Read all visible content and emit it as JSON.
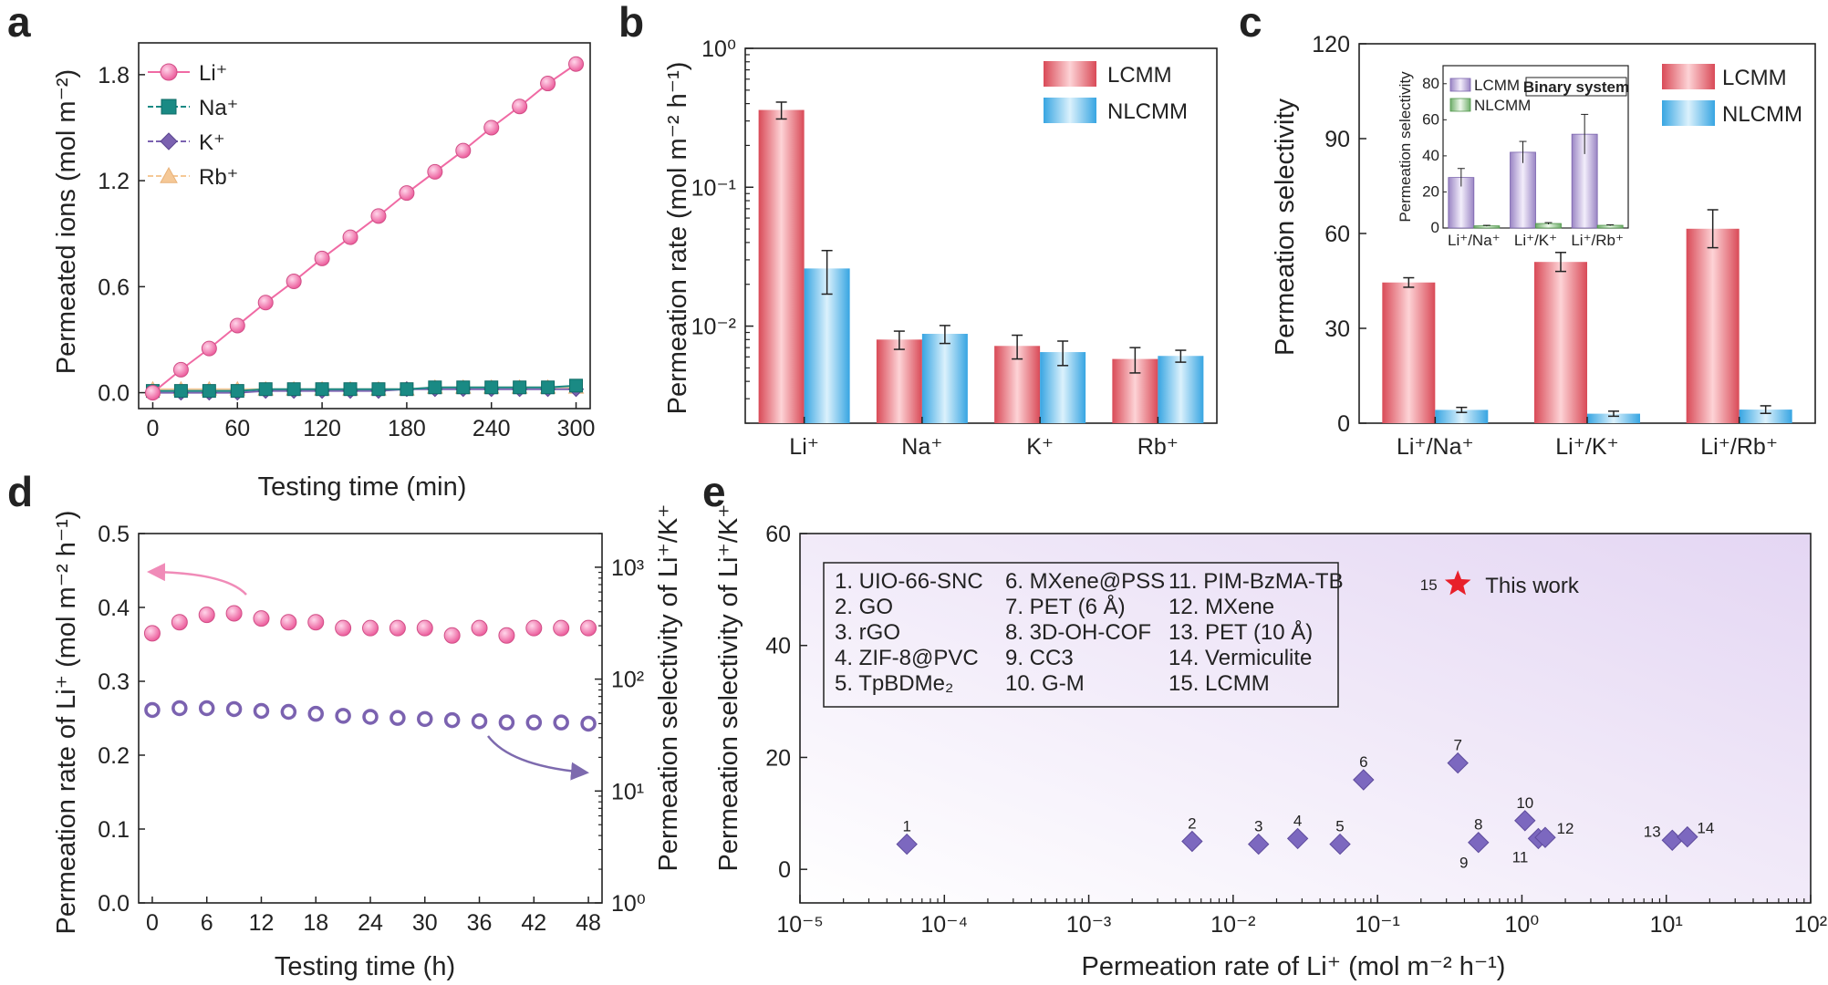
{
  "colors": {
    "li": "#f06aa4",
    "li_stroke": "#d14f87",
    "na": "#1a8a84",
    "k": "#7b62b0",
    "rb": "#f5c896",
    "lcmm": "#e35d68",
    "nlcmm": "#49b3e8",
    "marker_e": "#7c68bf",
    "star": "#e8202a"
  },
  "chart_data": [
    {
      "panel": "a",
      "type": "line",
      "xlabel": "Testing time (min)",
      "ylabel": "Permeated ions (mol m⁻²)",
      "xlim": [
        -10,
        310
      ],
      "ylim": [
        -0.09,
        1.98
      ],
      "xticks": [
        "0",
        "60",
        "120",
        "180",
        "240",
        "300"
      ],
      "yticks": [
        "0.0",
        "0.6",
        "1.2",
        "1.8"
      ],
      "x": [
        0,
        20,
        40,
        60,
        80,
        100,
        120,
        140,
        160,
        180,
        200,
        220,
        240,
        260,
        280,
        300
      ],
      "series": [
        {
          "name": "Li⁺",
          "marker": "circle",
          "values": [
            0.0,
            0.13,
            0.25,
            0.38,
            0.51,
            0.63,
            0.76,
            0.88,
            1.0,
            1.13,
            1.25,
            1.37,
            1.5,
            1.62,
            1.75,
            1.86
          ]
        },
        {
          "name": "Na⁺",
          "marker": "square",
          "values": [
            0.01,
            0.01,
            0.01,
            0.01,
            0.02,
            0.02,
            0.02,
            0.02,
            0.02,
            0.02,
            0.03,
            0.03,
            0.03,
            0.03,
            0.03,
            0.04
          ]
        },
        {
          "name": "K⁺",
          "marker": "diamond",
          "values": [
            0.0,
            0.0,
            0.0,
            0.0,
            0.01,
            0.01,
            0.01,
            0.01,
            0.01,
            0.02,
            0.02,
            0.02,
            0.02,
            0.02,
            0.02,
            0.02
          ]
        },
        {
          "name": "Rb⁺",
          "marker": "triangle",
          "values": [
            0.02,
            0.02,
            0.02,
            0.02,
            0.02,
            0.02,
            0.02,
            0.02,
            0.02,
            0.02,
            0.03,
            0.03,
            0.03,
            0.03,
            0.03,
            0.03
          ]
        }
      ]
    },
    {
      "panel": "b",
      "type": "bar",
      "scale": "log",
      "ylabel": "Permeation rate (mol m⁻² h⁻¹)",
      "ylim": [
        0.002,
        1.0
      ],
      "yticks": [
        "10⁻²",
        "10⁻¹",
        "10⁰"
      ],
      "categories": [
        "Li⁺",
        "Na⁺",
        "K⁺",
        "Rb⁺"
      ],
      "series": [
        {
          "name": "LCMM",
          "values": [
            0.36,
            0.008,
            0.0072,
            0.0058
          ],
          "errors": [
            0.05,
            0.0012,
            0.0014,
            0.0012
          ]
        },
        {
          "name": "NLCMM",
          "values": [
            0.026,
            0.0088,
            0.0065,
            0.0061
          ],
          "errors": [
            0.009,
            0.0013,
            0.0013,
            0.0006
          ]
        }
      ]
    },
    {
      "panel": "c",
      "type": "bar",
      "ylabel": "Permeation selectivity",
      "ylim": [
        0,
        120
      ],
      "yticks": [
        "0",
        "30",
        "60",
        "90",
        "120"
      ],
      "categories": [
        "Li⁺/Na⁺",
        "Li⁺/K⁺",
        "Li⁺/Rb⁺"
      ],
      "series": [
        {
          "name": "LCMM",
          "values": [
            44.5,
            51.0,
            61.5
          ],
          "errors": [
            1.5,
            3.0,
            6.0
          ]
        },
        {
          "name": "NLCMM",
          "values": [
            4.2,
            3.0,
            4.3
          ],
          "errors": [
            0.8,
            0.8,
            1.2
          ]
        }
      ],
      "inset": {
        "title": "Binary system",
        "ylabel": "Permeation selectivity",
        "ylim": [
          0,
          90
        ],
        "yticks": [
          "0",
          "20",
          "40",
          "60",
          "80"
        ],
        "categories": [
          "Li⁺/Na⁺",
          "Li⁺/K⁺",
          "Li⁺/Rb⁺"
        ],
        "series": [
          {
            "name": "LCMM",
            "values": [
              28,
              42,
              52
            ],
            "errors": [
              5,
              6,
              11
            ]
          },
          {
            "name": "NLCMM",
            "values": [
              1.2,
              2.5,
              1.5
            ],
            "errors": [
              0.3,
              0.5,
              0.3
            ]
          }
        ]
      }
    },
    {
      "panel": "d",
      "type": "scatter",
      "xlabel": "Testing time (h)",
      "ylabel": "Permeation rate of Li⁺ (mol m⁻² h⁻¹)",
      "ylabel_right": "Permeation selectivity of Li⁺/K⁺",
      "xlim": [
        -1.5,
        49.5
      ],
      "ylim": [
        0,
        0.5
      ],
      "ylim_right_log": [
        1,
        2000
      ],
      "xticks": [
        "0",
        "6",
        "12",
        "18",
        "24",
        "30",
        "36",
        "42",
        "48"
      ],
      "yticks": [
        "0.0",
        "0.1",
        "0.2",
        "0.3",
        "0.4",
        "0.5"
      ],
      "yticks_right": [
        "10⁰",
        "10¹",
        "10²",
        "10³"
      ],
      "x": [
        0,
        3,
        6,
        9,
        12,
        15,
        18,
        21,
        24,
        27,
        30,
        33,
        36,
        39,
        42,
        45,
        48
      ],
      "series": [
        {
          "axis": "left",
          "marker": "filled-circle",
          "values": [
            0.365,
            0.38,
            0.39,
            0.392,
            0.385,
            0.38,
            0.38,
            0.372,
            0.372,
            0.372,
            0.372,
            0.362,
            0.372,
            0.362,
            0.372,
            0.372,
            0.372
          ]
        },
        {
          "axis": "right",
          "marker": "open-circle",
          "values": [
            53,
            55,
            55,
            54,
            52,
            51,
            49,
            47,
            46,
            45,
            44,
            43,
            42,
            41,
            41,
            41,
            40
          ]
        }
      ]
    },
    {
      "panel": "e",
      "type": "scatter",
      "scale_x": "log",
      "xlabel": "Permeation rate of Li⁺ (mol m⁻² h⁻¹)",
      "ylabel": "Permeation selectivity of Li⁺/K⁺",
      "xlim_log": [
        -5,
        2
      ],
      "ylim": [
        -6,
        60
      ],
      "xticks": [
        "10⁻⁵",
        "10⁻⁴",
        "10⁻³",
        "10⁻²",
        "10⁻¹",
        "10⁰",
        "10¹",
        "10²"
      ],
      "yticks": [
        "0",
        "20",
        "40",
        "60"
      ],
      "points": [
        {
          "label": "1",
          "x": 5.5e-05,
          "y": 4.5
        },
        {
          "label": "2",
          "x": 0.0052,
          "y": 5.0
        },
        {
          "label": "3",
          "x": 0.015,
          "y": 4.5
        },
        {
          "label": "4",
          "x": 0.028,
          "y": 5.5
        },
        {
          "label": "5",
          "x": 0.055,
          "y": 4.5
        },
        {
          "label": "6",
          "x": 0.08,
          "y": 16.0
        },
        {
          "label": "7",
          "x": 0.36,
          "y": 19.0
        },
        {
          "label": "8",
          "x": 0.5,
          "y": 4.8
        },
        {
          "label": "9",
          "x": 0.5,
          "y": 4.8
        },
        {
          "label": "10",
          "x": 1.05,
          "y": 8.7
        },
        {
          "label": "11",
          "x": 1.3,
          "y": 5.5
        },
        {
          "label": "12",
          "x": 1.45,
          "y": 5.7
        },
        {
          "label": "13",
          "x": 11.0,
          "y": 5.2
        },
        {
          "label": "14",
          "x": 14.0,
          "y": 5.8
        }
      ],
      "highlight": {
        "label": "15",
        "x": 0.36,
        "y": 51.0,
        "text": "This work"
      },
      "legend_items": [
        "1. UIO-66-SNC",
        "2. GO",
        "3. rGO",
        "4. ZIF-8@PVC",
        "5. TpBDMe₂",
        "6. MXene@PSS",
        "7. PET (6 Å)",
        "8. 3D-OH-COF",
        "9. CC3",
        "10. G-M",
        "11. PIM-BzMA-TB",
        "12. MXene",
        "13. PET (10 Å)",
        "14. Vermiculite",
        "15. LCMM"
      ]
    }
  ]
}
